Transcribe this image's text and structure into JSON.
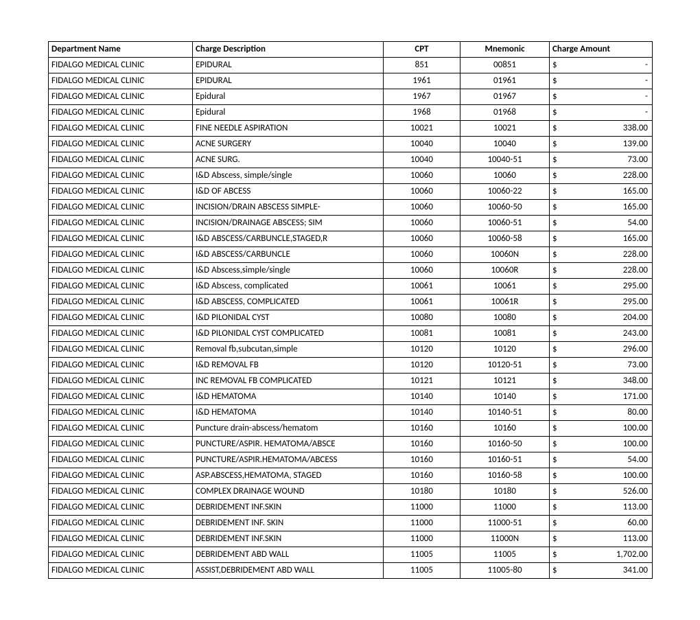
{
  "table": {
    "columns": [
      {
        "key": "dept",
        "label": "Department Name",
        "align": "left"
      },
      {
        "key": "desc",
        "label": "Charge Description",
        "align": "left"
      },
      {
        "key": "cpt",
        "label": "CPT",
        "align": "center"
      },
      {
        "key": "mnem",
        "label": "Mnemonic",
        "align": "center"
      },
      {
        "key": "amt",
        "label": "Charge Amount",
        "align": "left"
      }
    ],
    "currency_symbol": "$",
    "rows": [
      {
        "dept": "FIDALGO MEDICAL CLINIC",
        "desc": "EPIDURAL",
        "cpt": "851",
        "mnem": "00851",
        "amt": "-"
      },
      {
        "dept": "FIDALGO MEDICAL CLINIC",
        "desc": "EPIDURAL",
        "cpt": "1961",
        "mnem": "01961",
        "amt": "-"
      },
      {
        "dept": "FIDALGO MEDICAL CLINIC",
        "desc": "Epidural",
        "cpt": "1967",
        "mnem": "01967",
        "amt": "-"
      },
      {
        "dept": "FIDALGO MEDICAL CLINIC",
        "desc": "Epidural",
        "cpt": "1968",
        "mnem": "01968",
        "amt": "-"
      },
      {
        "dept": "FIDALGO MEDICAL CLINIC",
        "desc": "FINE NEEDLE ASPIRATION",
        "cpt": "10021",
        "mnem": "10021",
        "amt": "338.00"
      },
      {
        "dept": "FIDALGO MEDICAL CLINIC",
        "desc": "ACNE SURGERY",
        "cpt": "10040",
        "mnem": "10040",
        "amt": "139.00"
      },
      {
        "dept": "FIDALGO MEDICAL CLINIC",
        "desc": "ACNE SURG.",
        "cpt": "10040",
        "mnem": "10040-51",
        "amt": "73.00"
      },
      {
        "dept": "FIDALGO MEDICAL CLINIC",
        "desc": "I&D Abscess, simple/single",
        "cpt": "10060",
        "mnem": "10060",
        "amt": "228.00"
      },
      {
        "dept": "FIDALGO MEDICAL CLINIC",
        "desc": "I&D OF ABCESS",
        "cpt": "10060",
        "mnem": "10060-22",
        "amt": "165.00"
      },
      {
        "dept": "FIDALGO MEDICAL CLINIC",
        "desc": "INCISION/DRAIN ABSCESS SIMPLE-",
        "cpt": "10060",
        "mnem": "10060-50",
        "amt": "165.00"
      },
      {
        "dept": "FIDALGO MEDICAL CLINIC",
        "desc": "INCISION/DRAINAGE ABSCESS; SIM",
        "cpt": "10060",
        "mnem": "10060-51",
        "amt": "54.00"
      },
      {
        "dept": "FIDALGO MEDICAL CLINIC",
        "desc": "I&D ABSCESS/CARBUNCLE,STAGED,R",
        "cpt": "10060",
        "mnem": "10060-58",
        "amt": "165.00"
      },
      {
        "dept": "FIDALGO MEDICAL CLINIC",
        "desc": "I&D ABSCESS/CARBUNCLE",
        "cpt": "10060",
        "mnem": "10060N",
        "amt": "228.00"
      },
      {
        "dept": "FIDALGO MEDICAL CLINIC",
        "desc": "I&D Abscess,simple/single",
        "cpt": "10060",
        "mnem": "10060R",
        "amt": "228.00"
      },
      {
        "dept": "FIDALGO MEDICAL CLINIC",
        "desc": "I&D Abscess, complicated",
        "cpt": "10061",
        "mnem": "10061",
        "amt": "295.00"
      },
      {
        "dept": "FIDALGO MEDICAL CLINIC",
        "desc": "I&D ABSCESS, COMPLICATED",
        "cpt": "10061",
        "mnem": "10061R",
        "amt": "295.00"
      },
      {
        "dept": "FIDALGO MEDICAL CLINIC",
        "desc": "I&D PILONIDAL CYST",
        "cpt": "10080",
        "mnem": "10080",
        "amt": "204.00"
      },
      {
        "dept": "FIDALGO MEDICAL CLINIC",
        "desc": "I&D PILONIDAL CYST COMPLICATED",
        "cpt": "10081",
        "mnem": "10081",
        "amt": "243.00"
      },
      {
        "dept": "FIDALGO MEDICAL CLINIC",
        "desc": "Removal fb,subcutan,simple",
        "cpt": "10120",
        "mnem": "10120",
        "amt": "296.00"
      },
      {
        "dept": "FIDALGO MEDICAL CLINIC",
        "desc": "I&D REMOVAL FB",
        "cpt": "10120",
        "mnem": "10120-51",
        "amt": "73.00"
      },
      {
        "dept": "FIDALGO MEDICAL CLINIC",
        "desc": "INC REMOVAL FB COMPLICATED",
        "cpt": "10121",
        "mnem": "10121",
        "amt": "348.00"
      },
      {
        "dept": "FIDALGO MEDICAL CLINIC",
        "desc": "I&D HEMATOMA",
        "cpt": "10140",
        "mnem": "10140",
        "amt": "171.00"
      },
      {
        "dept": "FIDALGO MEDICAL CLINIC",
        "desc": "I&D HEMATOMA",
        "cpt": "10140",
        "mnem": "10140-51",
        "amt": "80.00"
      },
      {
        "dept": "FIDALGO MEDICAL CLINIC",
        "desc": "Puncture drain-abscess/hematom",
        "cpt": "10160",
        "mnem": "10160",
        "amt": "100.00"
      },
      {
        "dept": "FIDALGO MEDICAL CLINIC",
        "desc": "PUNCTURE/ASPIR. HEMATOMA/ABSCE",
        "cpt": "10160",
        "mnem": "10160-50",
        "amt": "100.00"
      },
      {
        "dept": "FIDALGO MEDICAL CLINIC",
        "desc": "PUNCTURE/ASPIR.HEMATOMA/ABCESS",
        "cpt": "10160",
        "mnem": "10160-51",
        "amt": "54.00"
      },
      {
        "dept": "FIDALGO MEDICAL CLINIC",
        "desc": "ASP.ABSCESS,HEMATOMA, STAGED",
        "cpt": "10160",
        "mnem": "10160-58",
        "amt": "100.00"
      },
      {
        "dept": "FIDALGO MEDICAL CLINIC",
        "desc": "COMPLEX DRAINAGE WOUND",
        "cpt": "10180",
        "mnem": "10180",
        "amt": "526.00"
      },
      {
        "dept": "FIDALGO MEDICAL CLINIC",
        "desc": "DEBRIDEMENT INF.SKIN",
        "cpt": "11000",
        "mnem": "11000",
        "amt": "113.00"
      },
      {
        "dept": "FIDALGO MEDICAL CLINIC",
        "desc": "DEBRIDEMENT INF. SKIN",
        "cpt": "11000",
        "mnem": "11000-51",
        "amt": "60.00"
      },
      {
        "dept": "FIDALGO MEDICAL CLINIC",
        "desc": "DEBRIDEMENT INF.SKIN",
        "cpt": "11000",
        "mnem": "11000N",
        "amt": "113.00"
      },
      {
        "dept": "FIDALGO MEDICAL CLINIC",
        "desc": "DEBRIDEMENT ABD WALL",
        "cpt": "11005",
        "mnem": "11005",
        "amt": "1,702.00"
      },
      {
        "dept": "FIDALGO MEDICAL CLINIC",
        "desc": "ASSIST,DEBRIDEMENT ABD WALL",
        "cpt": "11005",
        "mnem": "11005-80",
        "amt": "341.00"
      }
    ]
  }
}
